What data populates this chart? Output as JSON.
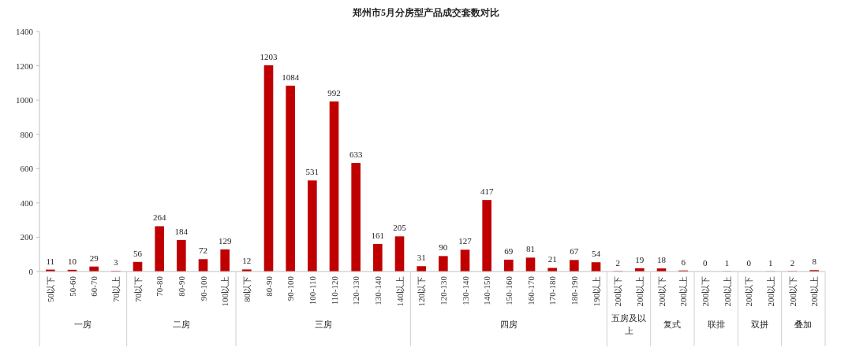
{
  "chart_data": {
    "type": "bar",
    "title": "郑州市5月分房型产品成交套数对比",
    "categories": [
      "50以下",
      "50-60",
      "60-70",
      "70以上",
      "70以下",
      "70-80",
      "80-90",
      "90-100",
      "100以上",
      "80以下",
      "80-90",
      "90-100",
      "100-110",
      "110-120",
      "120-130",
      "130-140",
      "140以上",
      "120以下",
      "120-130",
      "130-140",
      "140-150",
      "150-160",
      "160-170",
      "170-180",
      "180-190",
      "190以上",
      "200以下",
      "200以上",
      "200以下",
      "200以上",
      "200以下",
      "200以上",
      "200以下",
      "200以上",
      "200以下",
      "200以上"
    ],
    "values": [
      11,
      10,
      29,
      3,
      56,
      264,
      184,
      72,
      129,
      12,
      1203,
      1084,
      531,
      992,
      633,
      161,
      205,
      31,
      90,
      127,
      417,
      69,
      81,
      21,
      67,
      54,
      2,
      19,
      18,
      6,
      0,
      1,
      0,
      1,
      2,
      8
    ],
    "color": "#c00000",
    "annotations": [
      "一房",
      "二房",
      "三房",
      "四房",
      "五房及以上",
      "复式",
      "联排",
      "双拼",
      "叠加"
    ],
    "ylim": [
      0,
      1400
    ],
    "yticks": [
      0,
      200,
      400,
      600,
      800,
      1000,
      1200,
      1400
    ],
    "data_labels": true,
    "grid": false
  }
}
